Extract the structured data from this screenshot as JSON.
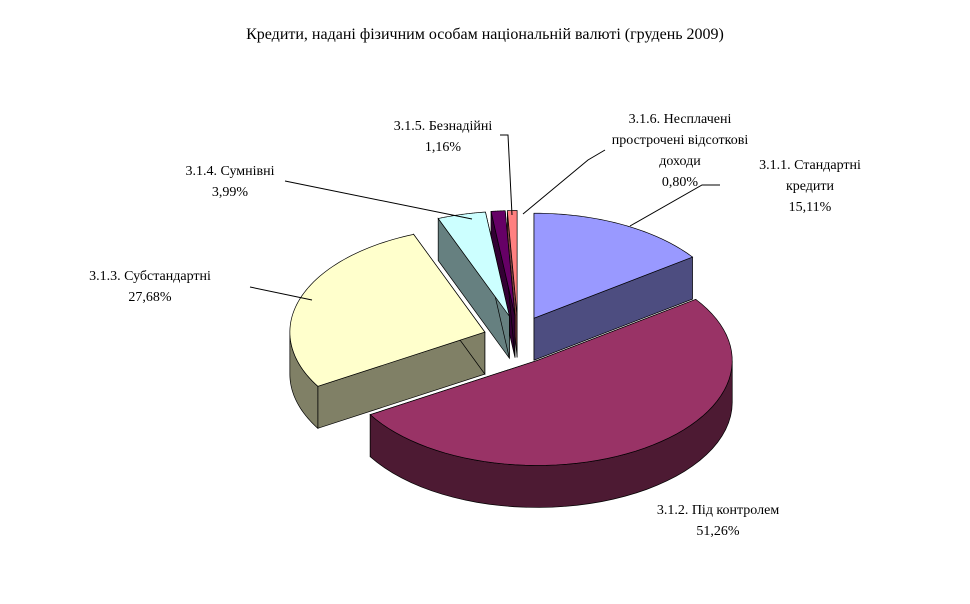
{
  "chart_data": {
    "type": "pie3d",
    "title": "Кредити, надані фізичним особам  національній валюті (грудень 2009)",
    "categories": [
      "3.1.1. Стандартні кредити",
      "3.1.2. Під контролем",
      "3.1.3. Субстандартні",
      "3.1.4. Сумнівні",
      "3.1.5. Безнадійні",
      "3.1.6. Несплачені прострочені відсоткові доходи"
    ],
    "values": [
      15.11,
      51.26,
      27.68,
      3.99,
      1.16,
      0.8
    ],
    "value_labels": [
      "15,11%",
      "51,26%",
      "27,68%",
      "3,99%",
      "1,16%",
      "0,80%"
    ],
    "colors": [
      "#9999ff",
      "#993366",
      "#ffffcc",
      "#ccffff",
      "#660066",
      "#ff8080"
    ]
  }
}
